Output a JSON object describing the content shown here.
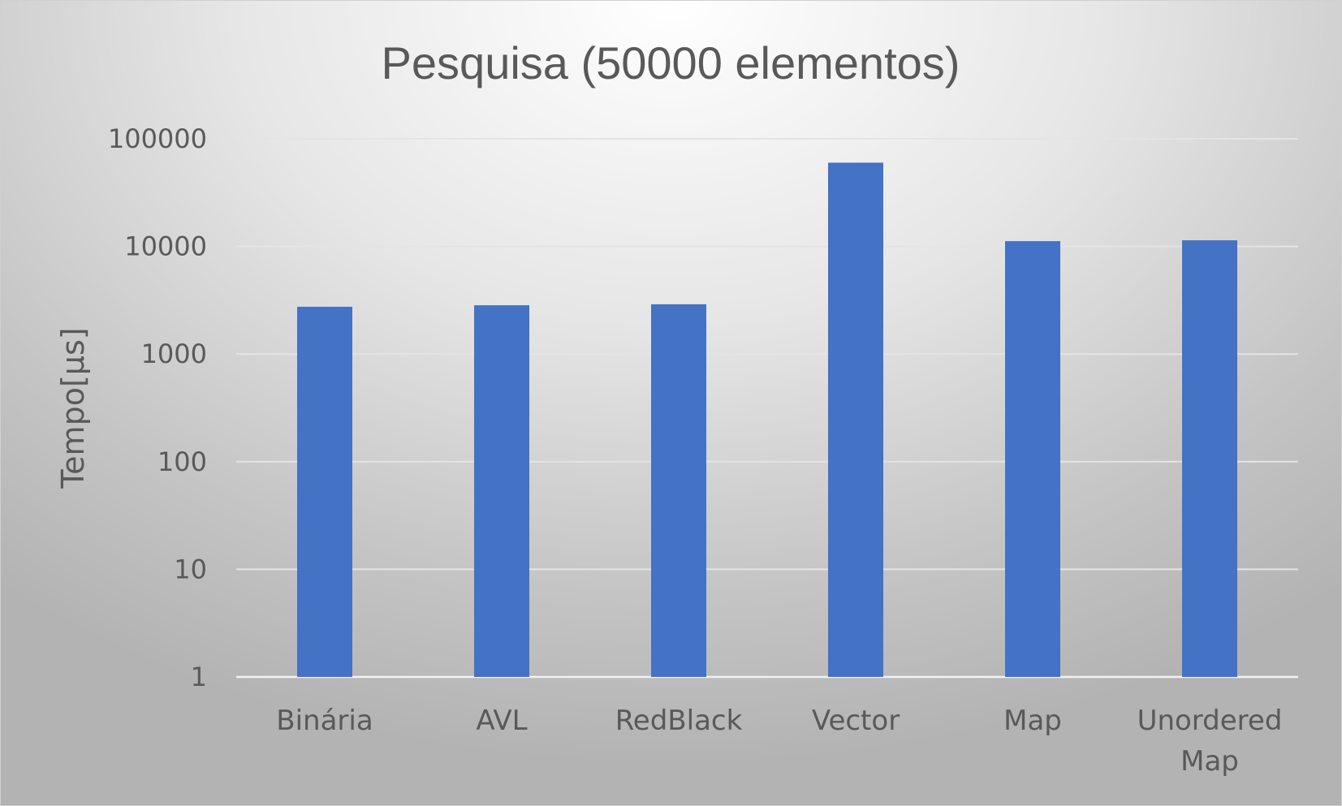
{
  "chart_data": {
    "type": "bar",
    "title": "Pesquisa (50000 elementos)",
    "ylabel": "Tempo[µs]",
    "xlabel": "",
    "yscale": "log",
    "ylim": [
      1,
      100000
    ],
    "yticks": [
      "1",
      "10",
      "100",
      "1000",
      "10000",
      "100000"
    ],
    "categories": [
      [
        "Binária"
      ],
      [
        "AVL"
      ],
      [
        "RedBlack"
      ],
      [
        "Vector"
      ],
      [
        "Map"
      ],
      [
        "Unordered",
        "Map"
      ]
    ],
    "values": [
      2750,
      2840,
      2900,
      60000,
      11200,
      11400
    ],
    "grid": true,
    "legend": "none",
    "colors": {
      "bar": "#4472C4",
      "grid": "#e4e4e4",
      "axis": "#f2f2f2",
      "text": "#595959"
    }
  }
}
